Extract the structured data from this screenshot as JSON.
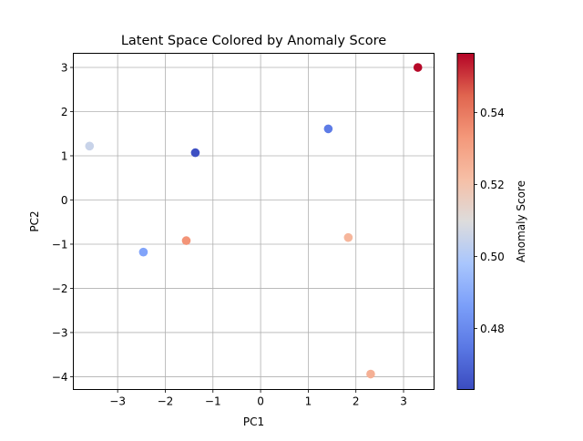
{
  "chart_data": {
    "type": "scatter",
    "title": "Latent Space Colored by Anomaly Score",
    "xlabel": "PC1",
    "ylabel": "PC2",
    "xlim": [
      -3.93,
      3.64
    ],
    "ylim": [
      -4.29,
      3.32
    ],
    "xticks": [
      -3,
      -2,
      -1,
      0,
      1,
      2,
      3
    ],
    "yticks": [
      -4,
      -3,
      -2,
      -1,
      0,
      1,
      2,
      3
    ],
    "grid": true,
    "colormap": "coolwarm",
    "points": [
      {
        "x": 3.3,
        "y": 3.0,
        "score": 0.556
      },
      {
        "x": 1.42,
        "y": 1.61,
        "score": 0.476
      },
      {
        "x": -3.59,
        "y": 1.22,
        "score": 0.505
      },
      {
        "x": -1.37,
        "y": 1.07,
        "score": 0.464
      },
      {
        "x": -2.46,
        "y": -1.18,
        "score": 0.488
      },
      {
        "x": -1.56,
        "y": -0.92,
        "score": 0.534
      },
      {
        "x": 1.84,
        "y": -0.85,
        "score": 0.524
      },
      {
        "x": 2.31,
        "y": -3.94,
        "score": 0.526
      }
    ],
    "colorbar": {
      "label": "Anomaly Score",
      "range": [
        0.463,
        0.5565
      ],
      "ticks": [
        0.48,
        0.5,
        0.52,
        0.54
      ],
      "tick_labels": [
        "0.48",
        "0.50",
        "0.52",
        "0.54"
      ]
    }
  }
}
